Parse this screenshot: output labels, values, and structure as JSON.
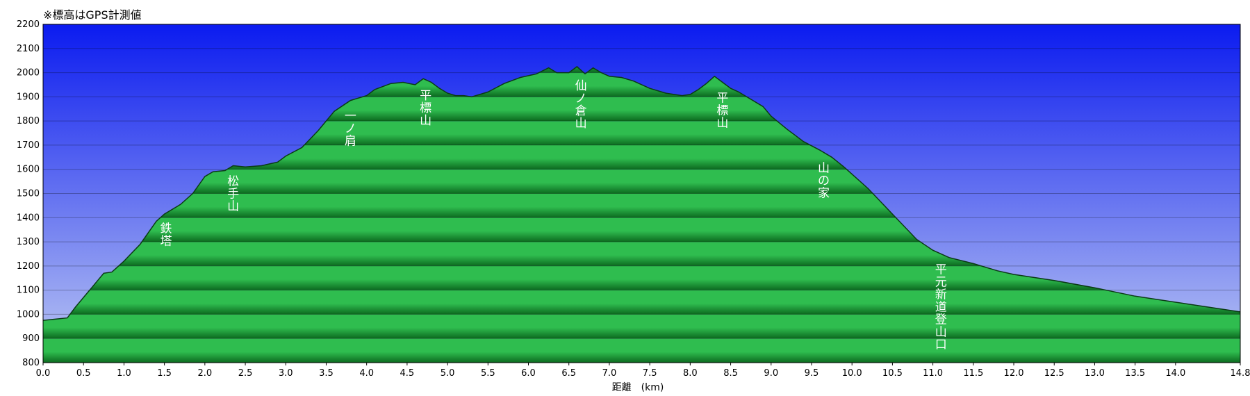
{
  "note": "※標高はGPS計測値",
  "colors": {
    "sky_top": "#0b1bf0",
    "sky_bottom": "#bcc8f2",
    "ground_light": "#2fbd4f",
    "ground_dark": "#0c6a1f",
    "outline": "#0b3a15"
  },
  "chart_data": {
    "type": "area",
    "title": "",
    "xlabel": "距離　(km)",
    "ylabel": "",
    "xlim": [
      0,
      14.8
    ],
    "ylim": [
      800,
      2200
    ],
    "grid": true,
    "x_ticks": [
      0.0,
      0.5,
      1.0,
      1.5,
      2.0,
      2.5,
      3.0,
      3.5,
      4.0,
      4.5,
      5.0,
      5.5,
      6.0,
      6.5,
      7.0,
      7.5,
      8.0,
      8.5,
      9.0,
      9.5,
      10.0,
      10.5,
      11.0,
      11.5,
      12.0,
      12.5,
      13.0,
      13.5,
      14.0,
      14.8
    ],
    "x_tick_labels": [
      "0.0",
      "0.5",
      "1.0",
      "1.5",
      "2.0",
      "2.5",
      "3.0",
      "3.5",
      "4.0",
      "4.5",
      "5.0",
      "5.5",
      "6.0",
      "6.5",
      "7.0",
      "7.5",
      "8.0",
      "8.5",
      "9.0",
      "9.5",
      "10.0",
      "10.5",
      "11.0",
      "11.5",
      "12.0",
      "12.5",
      "13.0",
      "13.5",
      "14.0",
      "14.8"
    ],
    "y_ticks": [
      800,
      900,
      1000,
      1100,
      1200,
      1300,
      1400,
      1500,
      1600,
      1700,
      1800,
      1900,
      2000,
      2100,
      2200
    ],
    "y_tick_labels": [
      "800",
      "900",
      "1000",
      "1100",
      "1200",
      "1300",
      "1400",
      "1500",
      "1600",
      "1700",
      "1800",
      "1900",
      "2000",
      "2100",
      "2200"
    ],
    "series": [
      {
        "x": [
          0.0,
          0.15,
          0.3,
          0.4,
          0.6,
          0.75,
          0.85,
          1.0,
          1.2,
          1.4,
          1.5,
          1.7,
          1.85,
          2.0,
          2.1,
          2.25,
          2.35,
          2.5,
          2.7,
          2.9,
          3.0,
          3.2,
          3.4,
          3.6,
          3.8,
          4.0,
          4.1,
          4.3,
          4.45,
          4.6,
          4.7,
          4.8,
          4.9,
          5.0,
          5.1,
          5.2,
          5.3,
          5.5,
          5.7,
          5.9,
          6.1,
          6.25,
          6.35,
          6.5,
          6.6,
          6.7,
          6.8,
          6.9,
          7.0,
          7.15,
          7.3,
          7.5,
          7.7,
          7.9,
          8.0,
          8.1,
          8.2,
          8.3,
          8.4,
          8.5,
          8.6,
          8.7,
          8.9,
          9.0,
          9.2,
          9.4,
          9.6,
          9.75,
          9.9,
          10.2,
          10.5,
          10.8,
          11.0,
          11.2,
          11.5,
          11.8,
          12.0,
          12.5,
          13.0,
          13.5,
          14.0,
          14.8
        ],
        "y": [
          975,
          980,
          985,
          1030,
          1110,
          1170,
          1175,
          1220,
          1290,
          1385,
          1415,
          1455,
          1500,
          1570,
          1590,
          1595,
          1615,
          1610,
          1615,
          1630,
          1655,
          1690,
          1760,
          1840,
          1885,
          1905,
          1930,
          1955,
          1960,
          1950,
          1975,
          1960,
          1935,
          1915,
          1905,
          1905,
          1900,
          1920,
          1955,
          1980,
          1995,
          2020,
          2000,
          2000,
          2025,
          1995,
          2020,
          2000,
          1985,
          1980,
          1965,
          1935,
          1915,
          1905,
          1910,
          1930,
          1955,
          1985,
          1960,
          1935,
          1920,
          1900,
          1860,
          1820,
          1765,
          1715,
          1680,
          1650,
          1610,
          1520,
          1415,
          1310,
          1265,
          1235,
          1210,
          1180,
          1165,
          1140,
          1110,
          1075,
          1050,
          1010
        ]
      }
    ],
    "annotations": [
      {
        "x": 1.52,
        "text": "鉄塔"
      },
      {
        "x": 2.35,
        "text": "松手山"
      },
      {
        "x": 3.8,
        "text": "一ノ肩"
      },
      {
        "x": 4.73,
        "text": "平標山"
      },
      {
        "x": 6.65,
        "text": "仙ノ倉山"
      },
      {
        "x": 8.4,
        "text": "平標山"
      },
      {
        "x": 9.65,
        "text": "山の家"
      },
      {
        "x": 11.1,
        "text": "平元新道登山口"
      }
    ]
  }
}
